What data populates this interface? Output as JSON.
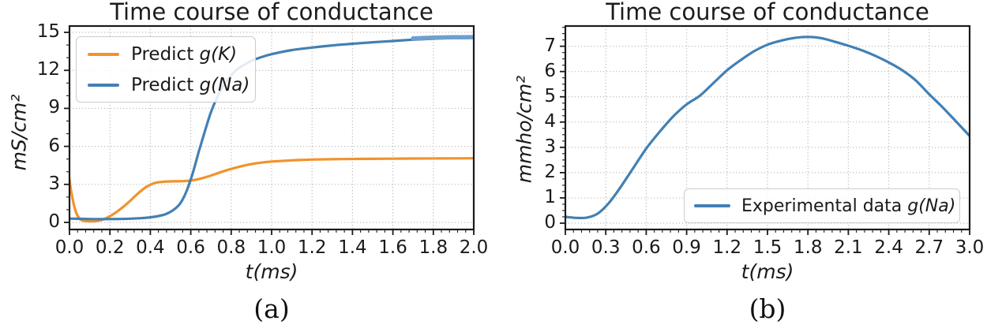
{
  "figure": {
    "background": "#ffffff"
  },
  "colors": {
    "orange": "#f1932b",
    "blue": "#4280b4",
    "blue_light_overlay": "#6f9fcd",
    "grid": "#bdbdbd",
    "spine": "#1a1a1a",
    "text": "#1a1a1a",
    "legend_border": "#cccccc"
  },
  "chart_data": [
    {
      "type": "line",
      "title": "Time course of conductance",
      "xlabel": "t(ms)",
      "ylabel": "mS/cm²",
      "caption": "(a)",
      "xlim": [
        0,
        2.0
      ],
      "ylim": [
        -0.56,
        15.5
      ],
      "grid": true,
      "grid_style": "dotted",
      "xtick_labels": [
        "0.0",
        "0.2",
        "0.4",
        "0.6",
        "0.8",
        "1.0",
        "1.2",
        "1.4",
        "1.6",
        "1.8",
        "2.0"
      ],
      "ytick_labels": [
        "0",
        "3",
        "6",
        "9",
        "12",
        "15"
      ],
      "x_minor_step": 0.04,
      "y_minor_step": 1.0,
      "legend_position": "upper left",
      "legend_entries": [
        {
          "prefix": "Predict ",
          "math": "g(K)",
          "color": "#f1932b"
        },
        {
          "prefix": "Predict ",
          "math": "g(Na)",
          "color": "#4280b4"
        }
      ],
      "series": [
        {
          "name": "Predict g(K)",
          "slug": "predict-gk-curve",
          "color": "#f1932b",
          "width": 3.2,
          "x": [
            0,
            0.01,
            0.03,
            0.05,
            0.07,
            0.1,
            0.13,
            0.16,
            0.19,
            0.22,
            0.26,
            0.3,
            0.34,
            0.38,
            0.42,
            0.46,
            0.5,
            0.55,
            0.6,
            0.65,
            0.7,
            0.75,
            0.8,
            0.85,
            0.9,
            0.95,
            1.0,
            1.1,
            1.2,
            1.35,
            1.5,
            1.7,
            1.85,
            2.0
          ],
          "y": [
            3.4,
            2.3,
            0.9,
            0.3,
            0.13,
            0.08,
            0.1,
            0.2,
            0.4,
            0.68,
            1.15,
            1.7,
            2.3,
            2.8,
            3.1,
            3.2,
            3.24,
            3.25,
            3.3,
            3.46,
            3.7,
            3.97,
            4.22,
            4.43,
            4.6,
            4.72,
            4.8,
            4.9,
            4.96,
            5.0,
            5.02,
            5.04,
            5.05,
            5.06
          ]
        },
        {
          "name": "Predict g(Na)",
          "slug": "predict-gna-curve",
          "color": "#4280b4",
          "width": 3.2,
          "x": [
            0,
            0.06,
            0.12,
            0.18,
            0.24,
            0.3,
            0.35,
            0.4,
            0.44,
            0.48,
            0.52,
            0.55,
            0.58,
            0.61,
            0.64,
            0.67,
            0.7,
            0.74,
            0.78,
            0.82,
            0.86,
            0.9,
            0.95,
            1.0,
            1.1,
            1.2,
            1.3,
            1.4,
            1.5,
            1.6,
            1.7,
            1.8,
            1.9,
            2.0
          ],
          "y": [
            0.3,
            0.28,
            0.26,
            0.26,
            0.27,
            0.29,
            0.33,
            0.4,
            0.5,
            0.68,
            1.05,
            1.55,
            2.5,
            3.9,
            5.6,
            7.2,
            8.7,
            10.2,
            11.2,
            11.95,
            12.4,
            12.75,
            13.05,
            13.28,
            13.6,
            13.8,
            13.97,
            14.1,
            14.22,
            14.32,
            14.42,
            14.5,
            14.56,
            14.6
          ]
        },
        {
          "name": "Predict g(Na) saturated end segment",
          "slug": "gna-saturated-overlay",
          "color": "#6f9fcd",
          "width": 5.5,
          "x": [
            1.7,
            1.8,
            1.9,
            2.0
          ],
          "y": [
            14.52,
            14.58,
            14.61,
            14.62
          ]
        }
      ]
    },
    {
      "type": "line",
      "title": "Time course of conductance",
      "xlabel": "t(ms)",
      "ylabel": "mmho/cm²",
      "caption": "(b)",
      "xlim": [
        0,
        3.0
      ],
      "ylim": [
        -0.25,
        7.8
      ],
      "grid": true,
      "grid_style": "dotted",
      "xtick_labels": [
        "0.0",
        "0.3",
        "0.6",
        "0.9",
        "1.2",
        "1.5",
        "1.8",
        "2.1",
        "2.4",
        "2.7",
        "3.0"
      ],
      "ytick_labels": [
        "0",
        "1",
        "2",
        "3",
        "4",
        "5",
        "6",
        "7"
      ],
      "x_minor_step": 0.06,
      "y_minor_step": 0.25,
      "legend_position": "lower right",
      "legend_entries": [
        {
          "prefix": "Experimental data ",
          "math": "g(Na)",
          "color": "#4280b4"
        }
      ],
      "series": [
        {
          "name": "Experimental data g(Na)",
          "slug": "experimental-gna-curve",
          "color": "#4280b4",
          "width": 3.2,
          "x": [
            0,
            0.08,
            0.16,
            0.24,
            0.32,
            0.4,
            0.5,
            0.6,
            0.7,
            0.8,
            0.9,
            1.0,
            1.1,
            1.2,
            1.3,
            1.4,
            1.5,
            1.6,
            1.7,
            1.8,
            1.9,
            2.0,
            2.1,
            2.2,
            2.3,
            2.4,
            2.5,
            2.6,
            2.7,
            2.8,
            2.9,
            3.0
          ],
          "y": [
            0.25,
            0.21,
            0.22,
            0.38,
            0.78,
            1.35,
            2.15,
            2.95,
            3.62,
            4.22,
            4.7,
            5.05,
            5.55,
            6.05,
            6.45,
            6.8,
            7.06,
            7.22,
            7.33,
            7.37,
            7.32,
            7.18,
            7.02,
            6.84,
            6.62,
            6.36,
            6.05,
            5.65,
            5.1,
            4.58,
            4.02,
            3.45
          ]
        }
      ]
    }
  ]
}
